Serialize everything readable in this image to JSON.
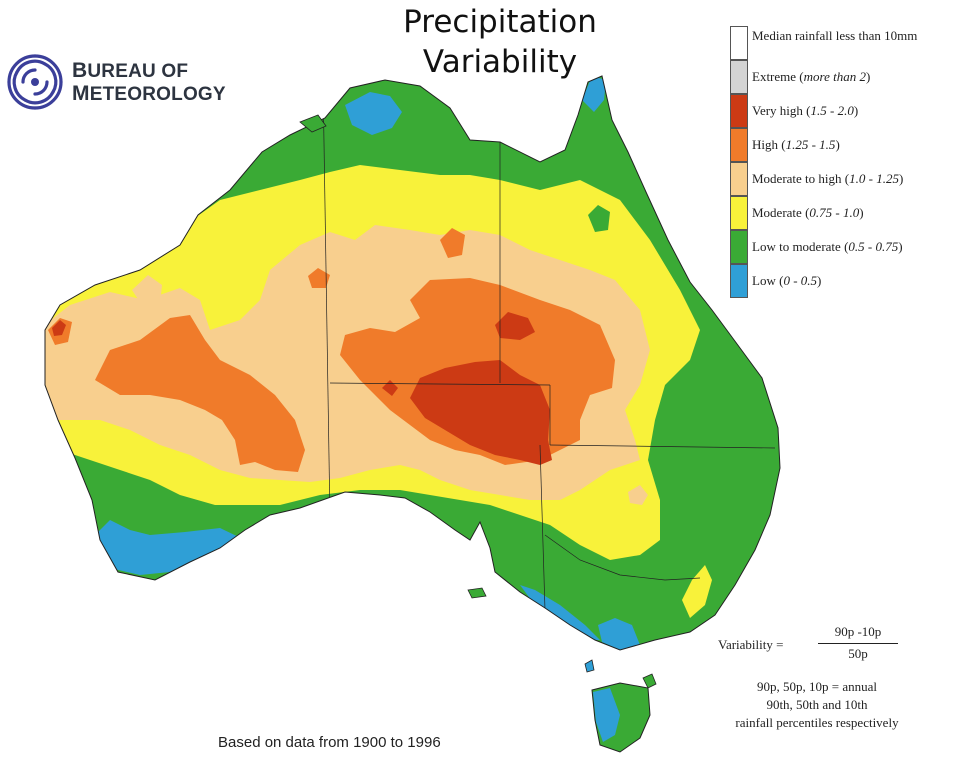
{
  "title": {
    "line1": "Precipitation",
    "line2": "Variability"
  },
  "logo": {
    "line1_first": "B",
    "line1_rest": "UREAU OF",
    "line2_first": "M",
    "line2_rest": "ETEOROLOGY"
  },
  "legend": {
    "items": [
      {
        "label": "Median rainfall less than 10mm",
        "range": "",
        "color": "#ffffff"
      },
      {
        "label": "Extreme",
        "range": "more than 2",
        "color": "#d4d4d4"
      },
      {
        "label": "Very high",
        "range": "1.5 - 2.0",
        "color": "#cc3a14"
      },
      {
        "label": "High",
        "range": "1.25 - 1.5",
        "color": "#f07b2a"
      },
      {
        "label": "Moderate to high",
        "range": "1.0 - 1.25",
        "color": "#f8cf8e"
      },
      {
        "label": "Moderate",
        "range": "0.75 - 1.0",
        "color": "#f8f23a"
      },
      {
        "label": "Low to moderate",
        "range": "0.5 - 0.75",
        "color": "#3aaa35"
      },
      {
        "label": "Low",
        "range": "0 - 0.5",
        "color": "#2f9fd6"
      }
    ]
  },
  "formula": {
    "lhs": "Variability =",
    "numerator": "90p -10p",
    "denominator": "50p"
  },
  "percentile_note": {
    "line1": "90p, 50p, 10p = annual",
    "line2": "90th, 50th and 10th",
    "line3": "rainfall percentiles respectively"
  },
  "source_note": "Based on data from 1900 to 1996"
}
